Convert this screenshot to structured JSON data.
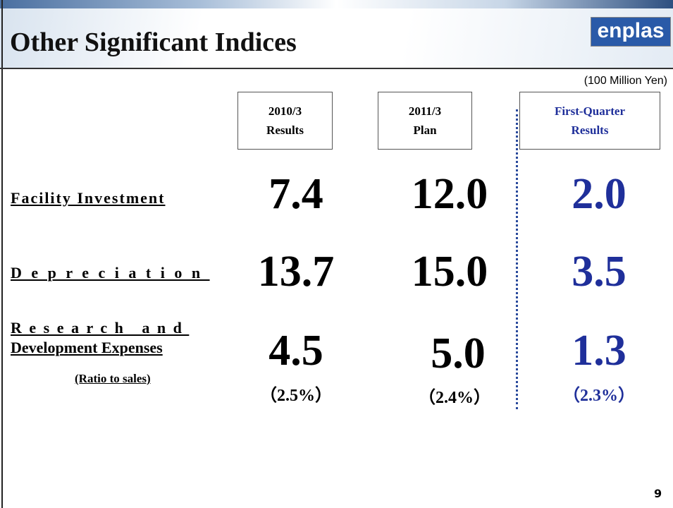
{
  "header": {
    "title": "Other Significant Indices",
    "logo": "enplas",
    "unit": "(100 Million Yen)"
  },
  "table": {
    "columns": [
      [
        "2010/3",
        "Results"
      ],
      [
        "2011/3",
        "Plan"
      ],
      [
        "First-Quarter",
        "Results"
      ]
    ],
    "rows": [
      {
        "label": [
          "Facility Investment"
        ],
        "values": [
          "7.4",
          "12.0",
          "2.0"
        ]
      },
      {
        "label": [
          "Depreciation"
        ],
        "values": [
          "13.7",
          "15.0",
          "3.5"
        ]
      },
      {
        "label": [
          "Research and",
          "Development Expenses"
        ],
        "sublabel": "(Ratio to sales)",
        "values": [
          "4.5",
          "5.0",
          "1.3"
        ],
        "ratios": [
          "（2.5%）",
          "（2.4%）",
          "（2.3%）"
        ]
      }
    ]
  },
  "footer": {
    "page": "9"
  }
}
